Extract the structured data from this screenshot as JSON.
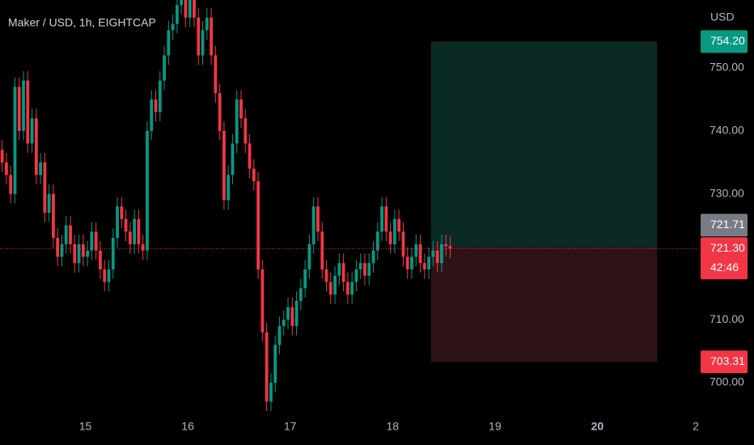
{
  "chart_data": {
    "type": "candlestick",
    "title": "Maker / USD, 1h, EIGHTCAP",
    "y_axis_label": "USD",
    "up_color": "#089981",
    "down_color": "#f23645",
    "x": [
      0,
      1,
      2,
      3,
      4,
      5,
      6,
      7,
      8,
      9,
      10,
      11,
      12,
      13,
      14,
      15,
      16,
      17,
      18,
      19,
      20,
      21,
      22,
      23,
      24,
      25,
      26,
      27,
      28,
      29,
      30,
      31,
      32,
      33,
      34,
      35,
      36,
      37,
      38,
      39,
      40,
      41,
      42,
      43,
      44,
      45,
      46,
      47,
      48,
      49,
      50,
      51,
      52,
      53,
      54,
      55,
      56,
      57,
      58,
      59,
      60,
      61,
      62,
      63,
      64,
      65,
      66,
      67,
      68,
      69,
      70,
      71,
      72,
      73,
      74,
      75,
      76,
      77,
      78,
      79,
      80,
      81,
      82,
      83,
      84,
      85,
      86,
      87,
      88,
      89,
      90,
      91,
      92,
      93,
      94,
      95,
      96,
      97,
      98,
      99,
      100,
      101,
      102,
      103,
      104,
      105
    ],
    "open": [
      737,
      735,
      733,
      730,
      747,
      740,
      748,
      738,
      742,
      733,
      735,
      727,
      730,
      723,
      720,
      722,
      725,
      722,
      719,
      722,
      720,
      721,
      724,
      721,
      718,
      716,
      718,
      723,
      728,
      726,
      724,
      722,
      726,
      722,
      721,
      740,
      745,
      743,
      748,
      752,
      756,
      757,
      760,
      762,
      758,
      762,
      758,
      752,
      756,
      758,
      752,
      746,
      740,
      729,
      733,
      738,
      745,
      742,
      738,
      734,
      732,
      718,
      708,
      697,
      700,
      706,
      709,
      710,
      712,
      709,
      713,
      715,
      718,
      722,
      728,
      724,
      718,
      716,
      714,
      717,
      719,
      716,
      714,
      716,
      718,
      719,
      717,
      719,
      721,
      724,
      728,
      724,
      722,
      726,
      724,
      720,
      718,
      720,
      722,
      719,
      718,
      720,
      721,
      719,
      722,
      721.7
    ],
    "high": [
      738.5,
      736.5,
      734.5,
      748.5,
      748.5,
      749.5,
      749.5,
      743.5,
      743.5,
      736.5,
      736.5,
      731.5,
      731.5,
      724.5,
      723.5,
      726.5,
      726.5,
      723.5,
      723.5,
      723.5,
      722.5,
      725.5,
      725.5,
      722.5,
      719.5,
      719.5,
      724.5,
      729.5,
      729.5,
      727.5,
      725.5,
      727.5,
      727.5,
      723.5,
      741.5,
      746.5,
      746.5,
      749.5,
      753.5,
      757.5,
      758.5,
      761.5,
      763.5,
      763.5,
      763.5,
      763.5,
      759.5,
      757.5,
      759.5,
      759.5,
      753.5,
      747.5,
      741.5,
      734.5,
      739.5,
      746.5,
      746.5,
      743.5,
      739.5,
      735.5,
      733.5,
      719.5,
      709.5,
      701.5,
      707.5,
      710.5,
      711.5,
      713.5,
      713.5,
      714.5,
      716.5,
      719.5,
      723.5,
      729.5,
      729.5,
      725.5,
      719.5,
      717.5,
      718.5,
      720.5,
      720.5,
      717.5,
      717.5,
      719.5,
      720.5,
      720.5,
      720.5,
      722.5,
      725.5,
      729.5,
      729.5,
      725.5,
      727.5,
      727.5,
      725.5,
      721.5,
      721.5,
      723.5,
      723.5,
      720.5,
      721.5,
      722.5,
      722.5,
      723.5,
      723.5,
      723.2
    ],
    "low": [
      733.5,
      731.5,
      728.5,
      728.5,
      738.5,
      738.5,
      736.5,
      736.5,
      731.5,
      731.5,
      725.5,
      725.5,
      721.5,
      718.5,
      718.5,
      720.5,
      720.5,
      717.5,
      717.5,
      718.5,
      718.5,
      719.5,
      719.5,
      716.5,
      714.5,
      714.5,
      716.5,
      721.5,
      724.5,
      722.5,
      720.5,
      720.5,
      720.5,
      719.5,
      719.5,
      738.5,
      741.5,
      741.5,
      746.5,
      750.5,
      754.5,
      755.5,
      758.5,
      756.5,
      756.5,
      756.5,
      750.5,
      750.5,
      754.5,
      750.5,
      744.5,
      738.5,
      727.5,
      727.5,
      731.5,
      736.5,
      740.5,
      736.5,
      732.5,
      730.5,
      716.5,
      706.5,
      695.5,
      695.5,
      698.5,
      704.5,
      707.5,
      708.5,
      707.5,
      707.5,
      711.5,
      713.5,
      716.5,
      720.5,
      722.5,
      716.5,
      714.5,
      712.5,
      712.5,
      715.5,
      714.5,
      712.5,
      712.5,
      714.5,
      716.5,
      715.5,
      715.5,
      717.5,
      719.5,
      722.5,
      722.5,
      720.5,
      720.5,
      722.5,
      718.5,
      716.5,
      716.5,
      718.5,
      717.5,
      716.5,
      716.5,
      718.5,
      717.5,
      717.5,
      720.2,
      719.8
    ],
    "close": [
      735,
      733,
      730,
      747,
      740,
      748,
      738,
      742,
      733,
      735,
      727,
      730,
      723,
      720,
      722,
      725,
      722,
      719,
      722,
      720,
      721,
      724,
      721,
      718,
      716,
      718,
      723,
      728,
      726,
      724,
      722,
      726,
      722,
      721,
      740,
      745,
      743,
      748,
      752,
      756,
      757,
      760,
      762,
      758,
      762,
      758,
      752,
      756,
      758,
      752,
      746,
      740,
      729,
      733,
      738,
      745,
      742,
      738,
      734,
      732,
      718,
      708,
      697,
      700,
      706,
      709,
      710,
      712,
      709,
      713,
      715,
      718,
      722,
      728,
      724,
      718,
      716,
      714,
      717,
      719,
      716,
      714,
      716,
      718,
      719,
      717,
      719,
      721,
      724,
      728,
      724,
      722,
      726,
      724,
      720,
      718,
      720,
      722,
      719,
      718,
      720,
      721,
      719,
      722,
      721.7,
      721.3
    ],
    "xlim": [
      0,
      164
    ],
    "xticks": [
      {
        "value": 20,
        "label": "15"
      },
      {
        "value": 44,
        "label": "16"
      },
      {
        "value": 68,
        "label": "17"
      },
      {
        "value": 92,
        "label": "18"
      },
      {
        "value": 116,
        "label": "19"
      },
      {
        "value": 140,
        "label": "20"
      },
      {
        "value": 164,
        "label": "2"
      }
    ],
    "ylim": [
      690.1,
      760.8
    ],
    "yticks": [
      {
        "value": 700,
        "label": "700.00"
      },
      {
        "value": 710,
        "label": "710.00"
      },
      {
        "value": 720,
        "label": "720.00"
      },
      {
        "value": 730,
        "label": "730.00"
      },
      {
        "value": 740,
        "label": "740.00"
      },
      {
        "value": 750,
        "label": "750.00"
      }
    ],
    "position": {
      "start": 101,
      "end": 154,
      "entry": 721.5,
      "target": 754.2,
      "stop": 703.31,
      "profit_color": "#0b2a24",
      "loss_color": "#2e1217"
    },
    "price_labels": [
      {
        "value": 754.2,
        "label": "754.20",
        "color": "#089981"
      },
      {
        "value": 721.71,
        "label": "721.71",
        "color": "#787b86"
      },
      {
        "value": 721.3,
        "label": "721.30",
        "color": "#f23645",
        "countdown": "42:46"
      },
      {
        "value": 703.31,
        "label": "703.31",
        "color": "#f23645"
      }
    ]
  }
}
